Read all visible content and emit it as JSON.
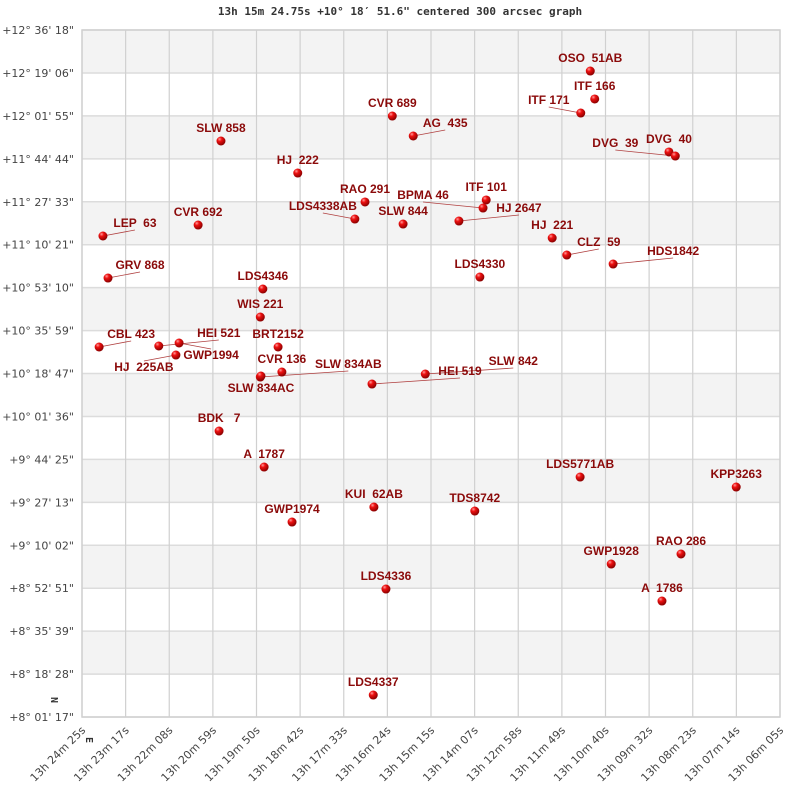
{
  "chart_data": {
    "type": "scatter",
    "title": "13h 15m 24.75s +10° 18′ 51.6\" centered 300 arcsec graph",
    "xlabel": "",
    "ylabel": "",
    "xlim": [
      "13:24:25",
      "13:06:05"
    ],
    "ylim": [
      "+8:01:17",
      "+12:36:18"
    ],
    "grid": true,
    "banded_rows": true,
    "compass": {
      "north": "N",
      "east": "E"
    },
    "colors": {
      "point": "#e00000",
      "label": "#8b0a0a",
      "grid": "#d0d0d0",
      "band": "#f3f3f3"
    },
    "x_ticks": [
      "13h 24m 25s",
      "13h 23m 17s",
      "13h 22m 08s",
      "13h 20m 59s",
      "13h 19m 50s",
      "13h 18m 42s",
      "13h 17m 33s",
      "13h 16m 24s",
      "13h 15m 15s",
      "13h 14m 07s",
      "13h 12m 58s",
      "13h 11m 49s",
      "13h 10m 40s",
      "13h 09m 32s",
      "13h 08m 23s",
      "13h 07m 14s",
      "13h 06m 05s"
    ],
    "y_ticks": [
      "+12° 36' 18\"",
      "+12° 19' 06\"",
      "+12° 01' 55\"",
      "+11° 44' 44\"",
      "+11° 27' 33\"",
      "+11° 10' 21\"",
      "+10° 53' 10\"",
      "+10° 35' 59\"",
      "+10° 18' 47\"",
      "+10° 01' 36\"",
      "+9° 44' 25\"",
      "+9° 27' 13\"",
      "+9° 10' 02\"",
      "+8° 52' 51\"",
      "+8° 35' 39\"",
      "+8° 18' 28\"",
      "+8° 01' 17\""
    ],
    "points": [
      {
        "name": "OSO  51AB",
        "ra": "13:11:04",
        "dec": "+12:19:53"
      },
      {
        "name": "ITF 166",
        "ra": "13:10:57",
        "dec": "+12:08:41"
      },
      {
        "name": "ITF 171",
        "ra": "13:11:19",
        "dec": "+12:03:04"
      },
      {
        "name": "CVR 689",
        "ra": "13:16:16",
        "dec": "+12:01:52"
      },
      {
        "name": "AG  435",
        "ra": "13:15:43",
        "dec": "+11:53:52"
      },
      {
        "name": "SLW 858",
        "ra": "13:20:46",
        "dec": "+11:51:52"
      },
      {
        "name": "DVG  40",
        "ra": "13:09:00",
        "dec": "+11:47:28"
      },
      {
        "name": "DVG  39",
        "ra": "13:08:50",
        "dec": "+11:45:51"
      },
      {
        "name": "HJ  222",
        "ra": "13:18:45",
        "dec": "+11:39:03"
      },
      {
        "name": "ITF 101",
        "ra": "13:13:48",
        "dec": "+11:28:15"
      },
      {
        "name": "RAO 291",
        "ra": "13:16:59",
        "dec": "+11:27:27"
      },
      {
        "name": "BPMA 46",
        "ra": "13:13:53",
        "dec": "+11:25:02"
      },
      {
        "name": "LDS4338AB",
        "ra": "13:17:15",
        "dec": "+11:20:38"
      },
      {
        "name": "SLW 844",
        "ra": "13:15:59",
        "dec": "+11:18:38"
      },
      {
        "name": "HJ 2647",
        "ra": "13:14:31",
        "dec": "+11:19:50"
      },
      {
        "name": "CVR 692",
        "ra": "13:21:22",
        "dec": "+11:18:14"
      },
      {
        "name": "LEP  63",
        "ra": "13:23:52",
        "dec": "+11:13:50"
      },
      {
        "name": "HJ  221",
        "ra": "13:12:04",
        "dec": "+11:13:02"
      },
      {
        "name": "CLZ  59",
        "ra": "13:11:41",
        "dec": "+11:06:13"
      },
      {
        "name": "HDS1842",
        "ra": "13:10:28",
        "dec": "+11:02:37"
      },
      {
        "name": "GRV 868",
        "ra": "13:23:44",
        "dec": "+10:57:01"
      },
      {
        "name": "LDS4330",
        "ra": "13:13:58",
        "dec": "+10:57:25"
      },
      {
        "name": "LDS4346",
        "ra": "13:19:40",
        "dec": "+10:52:37"
      },
      {
        "name": "WIS 221",
        "ra": "13:19:44",
        "dec": "+10:41:24"
      },
      {
        "name": "CBL 423",
        "ra": "13:23:58",
        "dec": "+10:29:24"
      },
      {
        "name": "HEI 521",
        "ra": "13:22:24",
        "dec": "+10:29:48"
      },
      {
        "name": "GWP1994",
        "ra": "13:21:52",
        "dec": "+10:31:00"
      },
      {
        "name": "HJ  225AB",
        "ra": "13:21:57",
        "dec": "+10:26:11"
      },
      {
        "name": "BRT2152",
        "ra": "13:19:16",
        "dec": "+10:29:24"
      },
      {
        "name": "CVR 136",
        "ra": "13:19:10",
        "dec": "+10:19:23"
      },
      {
        "name": "SLW 834AB",
        "ra": "13:19:44",
        "dec": "+10:17:23"
      },
      {
        "name": "SLW 834AC",
        "ra": "13:19:43",
        "dec": "+10:17:47"
      },
      {
        "name": "HEI 519",
        "ra": "13:16:48",
        "dec": "+10:14:35"
      },
      {
        "name": "SLW 842",
        "ra": "13:15:24",
        "dec": "+10:18:35"
      },
      {
        "name": "BDK   7",
        "ra": "13:20:49",
        "dec": "+09:55:46"
      },
      {
        "name": "A  1787",
        "ra": "13:19:38",
        "dec": "+09:41:21"
      },
      {
        "name": "LDS5771AB",
        "ra": "13:11:20",
        "dec": "+09:37:21"
      },
      {
        "name": "KPP3263",
        "ra": "13:07:14",
        "dec": "+09:33:21"
      },
      {
        "name": "KUI  62AB",
        "ra": "13:16:45",
        "dec": "+09:25:20"
      },
      {
        "name": "TDS8742",
        "ra": "13:14:06",
        "dec": "+09:23:44"
      },
      {
        "name": "GWP1974",
        "ra": "13:18:54",
        "dec": "+09:19:20"
      },
      {
        "name": "GWP1928",
        "ra": "13:10:31",
        "dec": "+09:02:31"
      },
      {
        "name": "RAO 286",
        "ra": "13:08:41",
        "dec": "+09:06:32"
      },
      {
        "name": "A  1786",
        "ra": "13:09:11",
        "dec": "+08:47:43"
      },
      {
        "name": "LDS4336",
        "ra": "13:16:26",
        "dec": "+08:52:31"
      },
      {
        "name": "LDS4337",
        "ra": "13:16:46",
        "dec": "+08:10:05"
      }
    ]
  }
}
